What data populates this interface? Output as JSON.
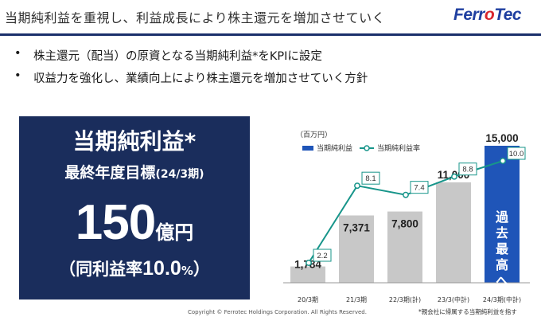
{
  "header": {
    "title": "当期純利益を重視し、利益成長により株主還元を増加させていく",
    "logo_prefix": "Ferr",
    "logo_o": "o",
    "logo_suffix": "Tec",
    "accent_color": "#1a2f6b"
  },
  "bullets": [
    "株主還元（配当）の原資となる当期純利益*をKPIに設定",
    "収益力を強化し、業績向上により株主還元を増加させていく方針"
  ],
  "bullet_symbol": "•",
  "kpi": {
    "title": "当期純利益*",
    "subtitle": "最終年度目標",
    "period": "(24/3期)",
    "value": "150",
    "unit": "億円",
    "margin_open": "（同利益率",
    "margin_value": "10.0",
    "margin_pct": "%",
    "margin_close": "）",
    "bg_color": "#1a2d5c"
  },
  "chart_data": {
    "type": "bar+line",
    "unit_label": "（百万円）",
    "categories": [
      "20/3期",
      "21/3期",
      "22/3期(計)",
      "23/3(中計)",
      "24/3期(中計)"
    ],
    "series": [
      {
        "name": "当期純利益",
        "type": "bar",
        "values": [
          1784,
          7371,
          7800,
          11000,
          15000
        ],
        "value_labels": [
          "1,784",
          "7,371",
          "7,800",
          "11,000",
          "15,000"
        ],
        "color": "#c8c8c8",
        "highlight_color": "#1f55b8"
      },
      {
        "name": "当期純利益率",
        "type": "line",
        "values": [
          2.2,
          8.1,
          7.4,
          8.8,
          10.0
        ],
        "value_labels": [
          "2.2",
          "8.1",
          "7.4",
          "8.8",
          "10.0"
        ],
        "color": "#17958a"
      }
    ],
    "highlight_text": [
      "過",
      "去",
      "最",
      "高",
      "へ"
    ],
    "grid": false
  },
  "footer": {
    "copyright": "Copyright © Ferrotec Holdings Corporation. All Rights Reserved.",
    "footnote": "*親会社に帰属する当期純利益を指す"
  }
}
